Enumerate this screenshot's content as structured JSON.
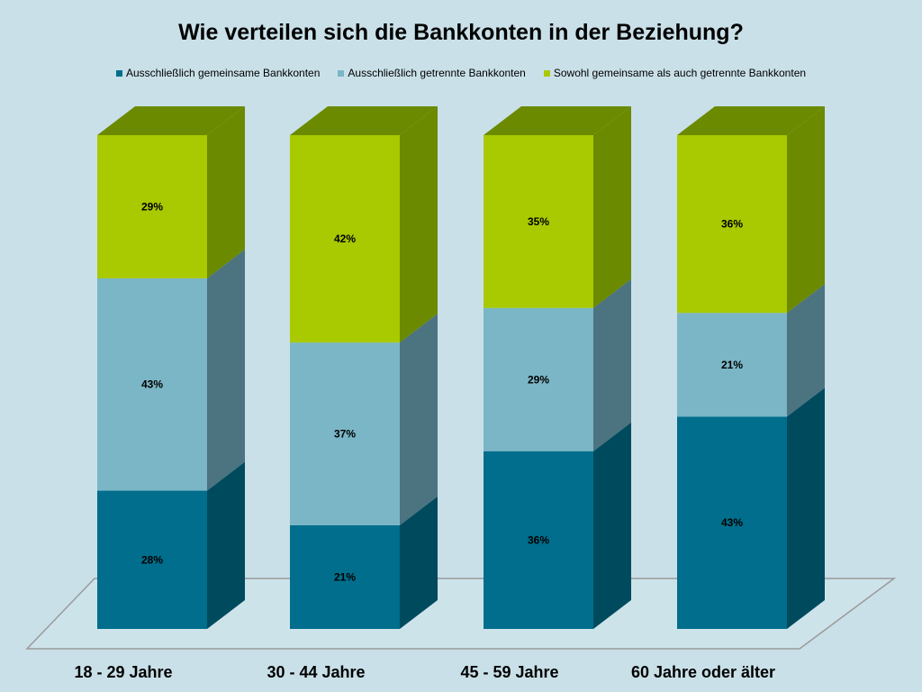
{
  "chart_data": {
    "type": "bar",
    "stacked": true,
    "three_d": true,
    "title": "Wie verteilen sich die Bankkonten in der Beziehung?",
    "categories": [
      "18 - 29 Jahre",
      "30 - 44 Jahre",
      "45 - 59 Jahre",
      "60 Jahre oder älter"
    ],
    "series": [
      {
        "name": "Ausschließlich gemeinsame Bankkonten",
        "values": [
          28,
          21,
          36,
          43
        ],
        "color": "#006e8c",
        "side_color": "#004a5e"
      },
      {
        "name": "Ausschließlich getrennte Bankkonten",
        "values": [
          43,
          37,
          29,
          21
        ],
        "color": "#7ab6c6",
        "side_color": "#4b7380"
      },
      {
        "name": "Sowohl gemeinsame als auch getrennte Bankkonten",
        "values": [
          29,
          42,
          35,
          36
        ],
        "color": "#a9c900",
        "side_color": "#6b8a00"
      }
    ],
    "value_labels": [
      [
        "28%",
        "21%",
        "36%",
        "43%"
      ],
      [
        "43%",
        "37%",
        "29%",
        "21%"
      ],
      [
        "29%",
        "42%",
        "35%",
        "36%"
      ]
    ],
    "ylim": [
      0,
      100
    ],
    "legend_position": "top",
    "grid": false,
    "background": "#c9e0e8"
  }
}
